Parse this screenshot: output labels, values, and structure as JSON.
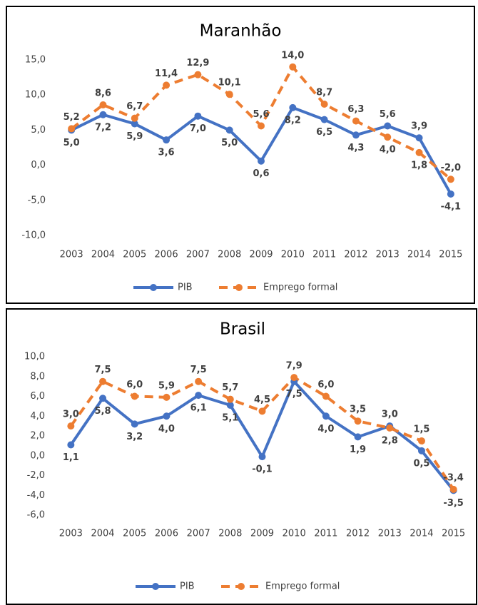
{
  "chart_data": [
    {
      "type": "line",
      "title": "Maranhão",
      "categories": [
        "2003",
        "2004",
        "2005",
        "2006",
        "2007",
        "2008",
        "2009",
        "2010",
        "2011",
        "2012",
        "2013",
        "2014",
        "2015"
      ],
      "series": [
        {
          "name": "PIB",
          "color": "#4472c4",
          "style": "solid",
          "values": [
            5.0,
            7.2,
            5.9,
            3.6,
            7.0,
            5.0,
            0.6,
            8.2,
            6.5,
            4.3,
            5.6,
            3.9,
            -4.1
          ],
          "value_labels": [
            "5,0",
            "7,2",
            "5,9",
            "3,6",
            "7,0",
            "5,0",
            "0,6",
            "8,2",
            "6,5",
            "4,3",
            "5,6",
            "3,9",
            "-4,1"
          ]
        },
        {
          "name": "Emprego formal",
          "color": "#ed7d31",
          "style": "dashed",
          "values": [
            5.2,
            8.6,
            6.7,
            11.4,
            12.9,
            10.1,
            5.6,
            14.0,
            8.7,
            6.3,
            4.0,
            1.8,
            -2.0
          ],
          "value_labels": [
            "5,2",
            "8,6",
            "6,7",
            "11,4",
            "12,9",
            "10,1",
            "5,6",
            "14,0",
            "8,7",
            "6,3",
            "4,0",
            "1,8",
            "-2,0"
          ]
        }
      ],
      "ylim": [
        -10,
        15
      ],
      "yticks": [
        {
          "value": -10,
          "label": "-10,0"
        },
        {
          "value": -5,
          "label": "-5,0"
        },
        {
          "value": 0,
          "label": "0,0"
        },
        {
          "value": 5,
          "label": "5,0"
        },
        {
          "value": 10,
          "label": "10,0"
        },
        {
          "value": 15,
          "label": "15,0"
        }
      ],
      "grid": false,
      "legend": "bottom"
    },
    {
      "type": "line",
      "title": "Brasil",
      "categories": [
        "2003",
        "2004",
        "2005",
        "2006",
        "2007",
        "2008",
        "2009",
        "2010",
        "2011",
        "2012",
        "2013",
        "2014",
        "2015"
      ],
      "series": [
        {
          "name": "PIB",
          "color": "#4472c4",
          "style": "solid",
          "values": [
            1.1,
            5.8,
            3.2,
            4.0,
            6.1,
            5.1,
            -0.1,
            7.5,
            4.0,
            1.9,
            3.0,
            0.5,
            -3.5
          ],
          "value_labels": [
            "1,1",
            "5,8",
            "3,2",
            "4,0",
            "6,1",
            "5,1",
            "-0,1",
            "7,5",
            "4,0",
            "1,9",
            "3,0",
            "0,5",
            "-3,5"
          ]
        },
        {
          "name": "Emprego formal",
          "color": "#ed7d31",
          "style": "dashed",
          "values": [
            3.0,
            7.5,
            6.0,
            5.9,
            7.5,
            5.7,
            4.5,
            7.9,
            6.0,
            3.5,
            2.8,
            1.5,
            -3.4
          ],
          "value_labels": [
            "3,0",
            "7,5",
            "6,0",
            "5,9",
            "7,5",
            "5,7",
            "4,5",
            "7,9",
            "6,0",
            "3,5",
            "2,8",
            "1,5",
            "-3,4"
          ]
        }
      ],
      "ylim": [
        -6,
        10
      ],
      "yticks": [
        {
          "value": -6,
          "label": "-6,0"
        },
        {
          "value": -4,
          "label": "-4,0"
        },
        {
          "value": -2,
          "label": "-2,0"
        },
        {
          "value": 0,
          "label": "0,0"
        },
        {
          "value": 2,
          "label": "2,0"
        },
        {
          "value": 4,
          "label": "4,0"
        },
        {
          "value": 6,
          "label": "6,0"
        },
        {
          "value": 8,
          "label": "8,0"
        },
        {
          "value": 10,
          "label": "10,0"
        }
      ],
      "grid": false,
      "legend": "bottom"
    }
  ]
}
